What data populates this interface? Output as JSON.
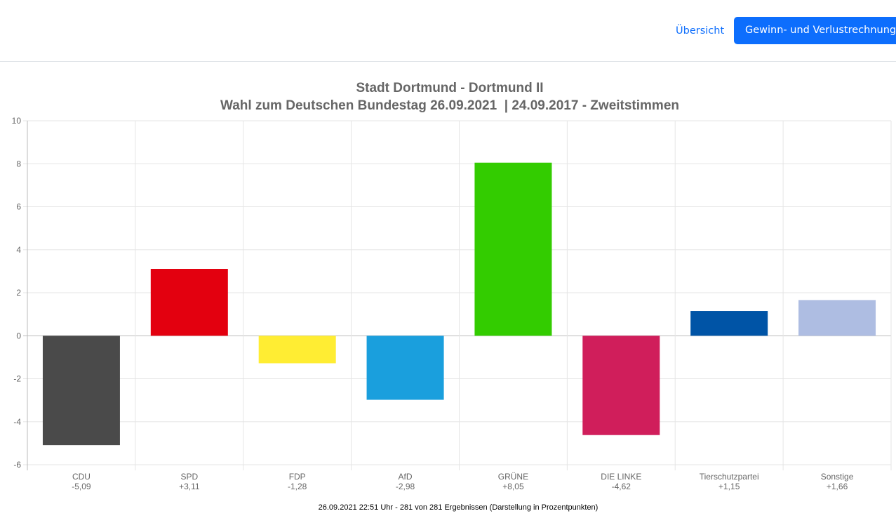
{
  "nav": {
    "overview_label": "Übersicht",
    "active_label": "Gewinn- und Verlustrechnung"
  },
  "chart_data": {
    "type": "bar",
    "title": "Stadt Dortmund - Dortmund II",
    "subtitle": "Wahl zum Deutschen Bundestag 26.09.2021  | 24.09.2017 - Zweitstimmen",
    "categories": [
      "CDU",
      "SPD",
      "FDP",
      "AfD",
      "GRÜNE",
      "DIE LINKE",
      "Tierschutzpartei",
      "Sonstige"
    ],
    "value_labels": [
      "-5,09",
      "+3,11",
      "-1,28",
      "-2,98",
      "+8,05",
      "-4,62",
      "+1,15",
      "+1,66"
    ],
    "values": [
      -5.09,
      3.11,
      -1.28,
      -2.98,
      8.05,
      -4.62,
      1.15,
      1.66
    ],
    "colors": [
      "#4a4a4a",
      "#e3000f",
      "#ffed33",
      "#1a9fdd",
      "#33cc00",
      "#d01e5b",
      "#0054a6",
      "#aebde2"
    ],
    "ylim": [
      -6,
      10
    ],
    "yticks": [
      -6,
      -4,
      -2,
      0,
      2,
      4,
      6,
      8,
      10
    ],
    "grid": true,
    "footnote": "26.09.2021 22:51 Uhr - 281 von 281 Ergebnissen (Darstellung in Prozentpunkten)"
  }
}
